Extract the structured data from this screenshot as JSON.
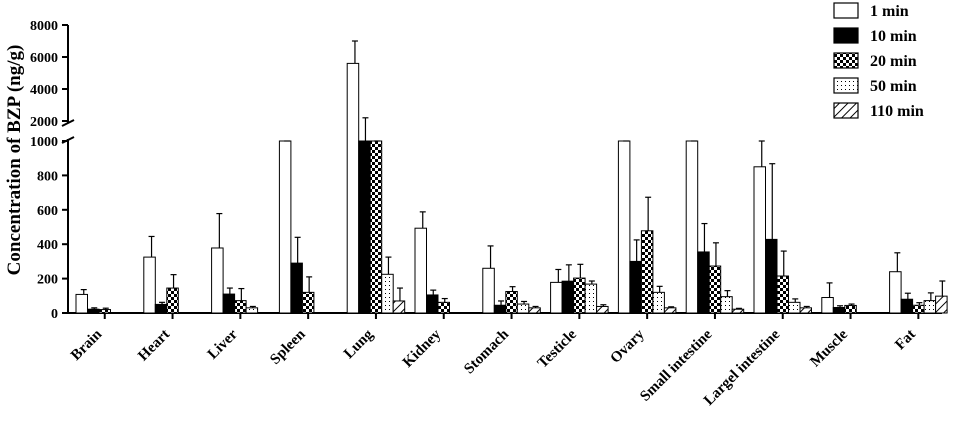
{
  "chart_data": {
    "type": "bar",
    "ylabel": "Concentration of BZP (ng/g)",
    "xlabel": "",
    "title": "",
    "axis_break": [
      1000,
      2000
    ],
    "ylim": [
      0,
      8000
    ],
    "yticks_lower": [
      0,
      200,
      400,
      600,
      800,
      1000
    ],
    "yticks_upper": [
      2000,
      4000,
      6000,
      8000
    ],
    "legend_position": "top-right",
    "categories": [
      "Brain",
      "Heart",
      "Liver",
      "Spleen",
      "Lung",
      "Kidney",
      "Stomach",
      "Testicle",
      "Ovary",
      "Small intestine",
      "Largel intestine",
      "Muscle",
      "Fat"
    ],
    "series": [
      {
        "name": "1 min",
        "pattern": "open",
        "values": [
          108,
          325,
          378,
          1040,
          5600,
          493,
          260,
          178,
          1100,
          1050,
          850,
          90,
          240
        ],
        "errors": [
          28,
          120,
          200,
          40,
          1400,
          95,
          130,
          75,
          200,
          750,
          420,
          85,
          110
        ]
      },
      {
        "name": "10 min",
        "pattern": "solid",
        "values": [
          22,
          50,
          110,
          290,
          1700,
          105,
          45,
          185,
          300,
          355,
          428,
          32,
          80
        ],
        "errors": [
          8,
          12,
          35,
          150,
          500,
          28,
          25,
          95,
          125,
          165,
          440,
          10,
          35
        ]
      },
      {
        "name": "20 min",
        "pattern": "checker",
        "values": [
          20,
          145,
          72,
          120,
          1300,
          62,
          125,
          203,
          478,
          273,
          215,
          44,
          45
        ],
        "errors": [
          8,
          78,
          70,
          90,
          350,
          22,
          28,
          80,
          195,
          135,
          145,
          8,
          15
        ]
      },
      {
        "name": "50 min",
        "pattern": "dotted",
        "values": [
          0,
          0,
          30,
          0,
          225,
          0,
          52,
          168,
          120,
          95,
          62,
          0,
          72
        ],
        "errors": [
          0,
          0,
          8,
          0,
          100,
          0,
          15,
          18,
          35,
          35,
          20,
          0,
          45
        ]
      },
      {
        "name": "110 min",
        "pattern": "hatched",
        "values": [
          0,
          0,
          0,
          0,
          70,
          0,
          30,
          38,
          30,
          22,
          30,
          0,
          98
        ],
        "errors": [
          0,
          0,
          0,
          0,
          75,
          0,
          8,
          10,
          6,
          5,
          8,
          0,
          88
        ]
      }
    ]
  }
}
